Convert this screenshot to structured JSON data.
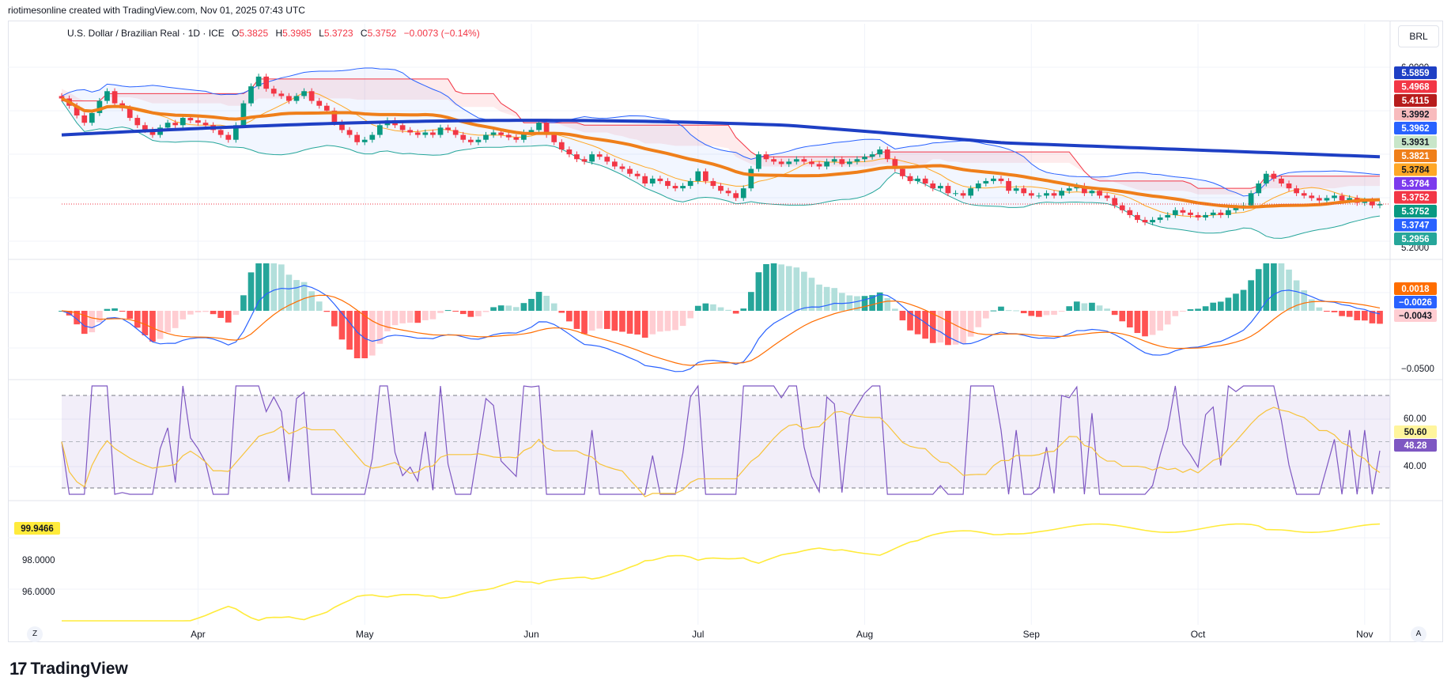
{
  "header": {
    "attribution": "riotimesonline created with TradingView.com, Nov 01, 2025 07:43 UTC"
  },
  "legend": {
    "symbol": "U.S. Dollar / Brazilian Real · 1D · ICE",
    "o_label": "O",
    "o_value": "5.3825",
    "h_label": "H",
    "h_value": "5.3985",
    "l_label": "L",
    "l_value": "5.3723",
    "c_label": "C",
    "c_value": "5.3752",
    "change": "−0.0073 (−0.14%)"
  },
  "currency": "BRL",
  "footer": {
    "brand": "TradingView",
    "logo_glyph": "17"
  },
  "corner_left": "Z",
  "corner_right": "A",
  "colors": {
    "up": "#089981",
    "down": "#f23645",
    "sma200": "#1e3fc4",
    "sma50": "#ef7f1a",
    "macd": "#2962ff",
    "signal": "#ff6d00",
    "rsi": "#7e57c2",
    "rsi_ma": "#f7c33a",
    "dxy": "#ffeb3b"
  },
  "chart_data": [
    {
      "type": "candlestick",
      "title": "U.S. Dollar / Brazilian Real · 1D · ICE",
      "x_tick_labels": [
        "Apr",
        "May",
        "Jun",
        "Jul",
        "Aug",
        "Sep",
        "Oct",
        "Nov"
      ],
      "ylim": [
        5.18,
        6.02
      ],
      "y_tick_labels": [
        "6.0000",
        "5.2000"
      ],
      "close": [
        5.81,
        5.78,
        5.74,
        5.71,
        5.75,
        5.8,
        5.84,
        5.79,
        5.77,
        5.73,
        5.7,
        5.68,
        5.66,
        5.69,
        5.71,
        5.7,
        5.73,
        5.72,
        5.71,
        5.7,
        5.68,
        5.66,
        5.64,
        5.7,
        5.79,
        5.86,
        5.9,
        5.85,
        5.83,
        5.82,
        5.8,
        5.82,
        5.84,
        5.8,
        5.78,
        5.76,
        5.71,
        5.68,
        5.66,
        5.63,
        5.64,
        5.66,
        5.7,
        5.72,
        5.7,
        5.68,
        5.67,
        5.66,
        5.67,
        5.66,
        5.69,
        5.68,
        5.66,
        5.64,
        5.63,
        5.64,
        5.66,
        5.67,
        5.66,
        5.65,
        5.64,
        5.67,
        5.68,
        5.71,
        5.66,
        5.63,
        5.6,
        5.58,
        5.56,
        5.55,
        5.58,
        5.57,
        5.55,
        5.53,
        5.52,
        5.5,
        5.49,
        5.46,
        5.48,
        5.47,
        5.45,
        5.44,
        5.45,
        5.47,
        5.51,
        5.47,
        5.45,
        5.43,
        5.42,
        5.4,
        5.44,
        5.52,
        5.58,
        5.56,
        5.55,
        5.54,
        5.55,
        5.56,
        5.55,
        5.54,
        5.53,
        5.55,
        5.56,
        5.54,
        5.55,
        5.56,
        5.57,
        5.58,
        5.6,
        5.56,
        5.52,
        5.49,
        5.47,
        5.48,
        5.46,
        5.44,
        5.45,
        5.42,
        5.42,
        5.41,
        5.44,
        5.46,
        5.47,
        5.48,
        5.47,
        5.43,
        5.44,
        5.42,
        5.41,
        5.41,
        5.42,
        5.41,
        5.43,
        5.44,
        5.45,
        5.42,
        5.43,
        5.41,
        5.4,
        5.37,
        5.35,
        5.33,
        5.31,
        5.3,
        5.31,
        5.32,
        5.33,
        5.35,
        5.34,
        5.33,
        5.32,
        5.33,
        5.34,
        5.33,
        5.35,
        5.36,
        5.37,
        5.42,
        5.46,
        5.5,
        5.48,
        5.46,
        5.44,
        5.42,
        5.41,
        5.4,
        5.39,
        5.4,
        5.41,
        5.39,
        5.4,
        5.38,
        5.39,
        5.37,
        5.3752
      ]
    },
    {
      "type": "histogram+line",
      "series": [
        {
          "name": "MACD"
        },
        {
          "name": "Signal"
        },
        {
          "name": "Histogram"
        }
      ],
      "ylim": [
        -0.06,
        0.03
      ],
      "y_tick_labels": [
        "−0.0500"
      ]
    },
    {
      "type": "line",
      "series": [
        {
          "name": "RSI"
        },
        {
          "name": "RSI MA"
        }
      ],
      "ylim": [
        25,
        75
      ],
      "y_tick_labels": [
        "60.00",
        "40.00"
      ]
    },
    {
      "type": "line",
      "ylim": [
        94.5,
        101.5
      ],
      "y_tick_labels": [
        "98.0000",
        "96.0000"
      ]
    }
  ],
  "price_tags": [
    {
      "value": "5.5859",
      "color": "#1e3fc4",
      "text_color": "#ffffff"
    },
    {
      "value": "5.4968",
      "color": "#f23645",
      "text_color": "#ffffff"
    },
    {
      "value": "5.4115",
      "color": "#b71c1c",
      "text_color": "#ffffff"
    },
    {
      "value": "5.3992",
      "color": "#f8bbbd",
      "text_color": "#131722"
    },
    {
      "value": "5.3962",
      "color": "#2962ff",
      "text_color": "#ffffff"
    },
    {
      "value": "5.3931",
      "color": "#c8e6c9",
      "text_color": "#131722"
    },
    {
      "value": "5.3821",
      "color": "#ef7f1a",
      "text_color": "#ffffff"
    },
    {
      "value": "5.3784",
      "color": "#ffa726",
      "text_color": "#131722"
    },
    {
      "value": "5.3784",
      "color": "#7c3aed",
      "text_color": "#ffffff"
    },
    {
      "value": "5.3752",
      "color": "#f23645",
      "text_color": "#ffffff"
    },
    {
      "value": "5.3752",
      "color": "#089981",
      "text_color": "#ffffff"
    },
    {
      "value": "5.3747",
      "color": "#2962ff",
      "text_color": "#ffffff"
    },
    {
      "value": "5.2956",
      "color": "#26a69a",
      "text_color": "#ffffff"
    }
  ],
  "macd_tags": [
    {
      "value": "0.0018",
      "color": "#ff6d00",
      "text_color": "#ffffff"
    },
    {
      "value": "−0.0026",
      "color": "#2962ff",
      "text_color": "#ffffff"
    },
    {
      "value": "−0.0043",
      "color": "#ffcdd2",
      "text_color": "#131722"
    }
  ],
  "rsi_tags": [
    {
      "value": "50.60",
      "color": "#fff59d",
      "text_color": "#131722"
    },
    {
      "value": "48.28",
      "color": "#7e57c2",
      "text_color": "#ffffff"
    }
  ],
  "dxy_tag": {
    "value": "99.9466",
    "color": "#ffeb3b",
    "text_color": "#131722"
  }
}
